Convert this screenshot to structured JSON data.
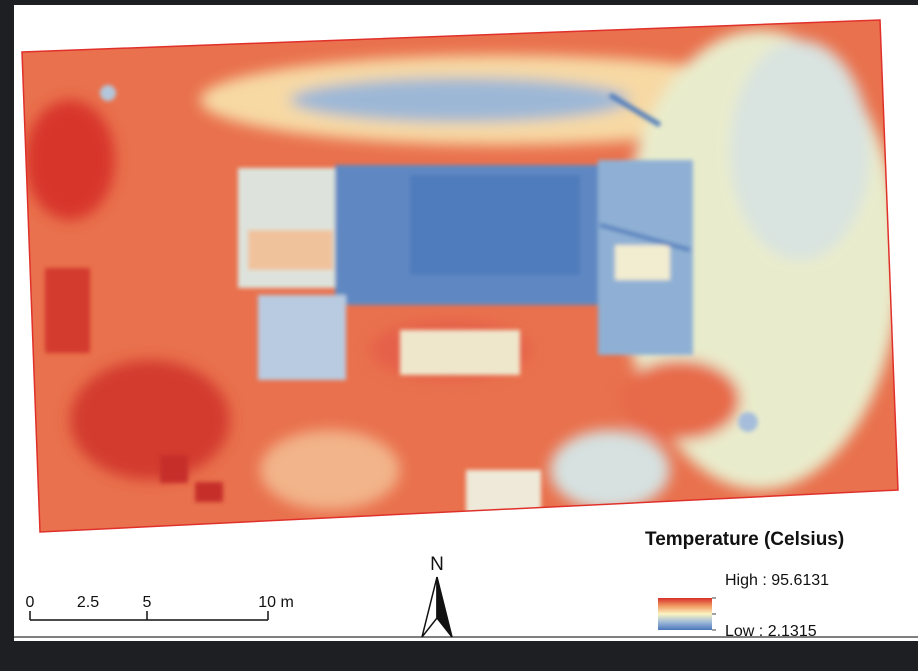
{
  "legend": {
    "title": "Temperature (Celsius)",
    "high": "High : 95.6131",
    "low": "Low : 2.1315"
  },
  "north_arrow": {
    "label": "N"
  },
  "scale_bar": {
    "labels": [
      "0",
      "2.5",
      "5",
      "10 m"
    ]
  }
}
